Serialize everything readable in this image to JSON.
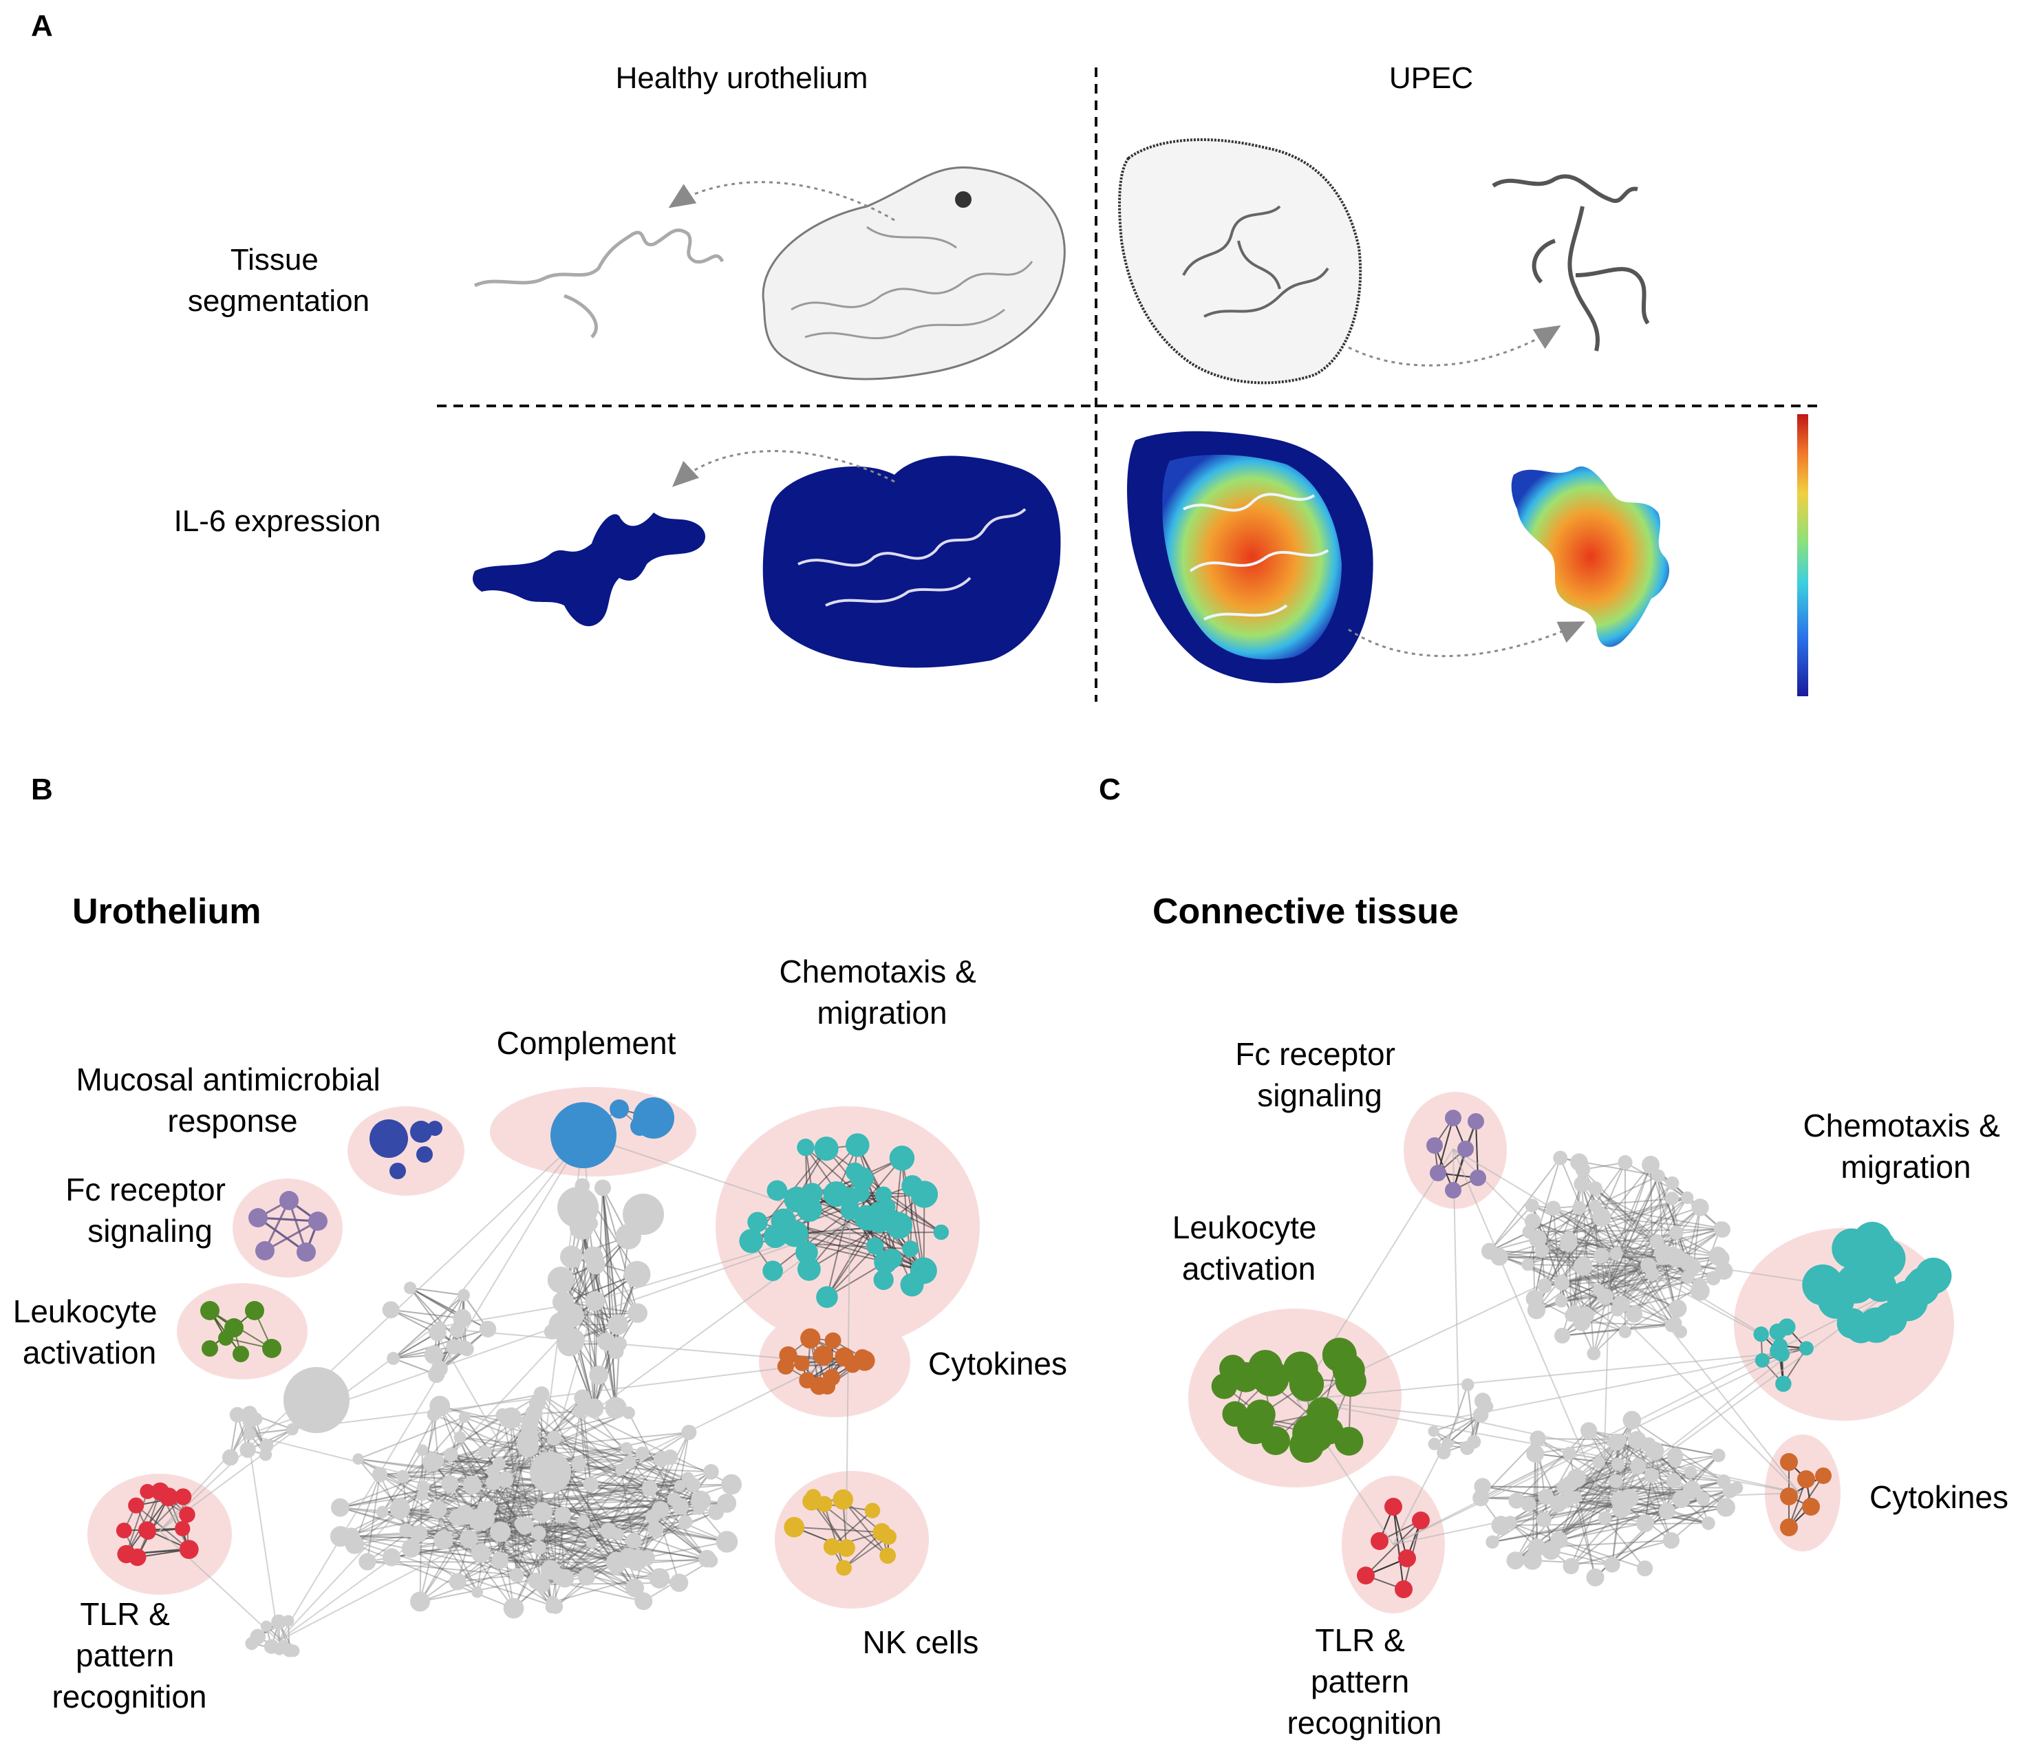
{
  "panel_letters": {
    "a": "A",
    "b": "B",
    "c": "C"
  },
  "panel_a": {
    "col_left": "Healthy urothelium",
    "col_right": "UPEC",
    "row_top": [
      "Tissue",
      "segmentation"
    ],
    "row_bottom": "IL-6 expression"
  },
  "panel_b": {
    "title": "Urothelium",
    "clusters": {
      "mucosal": [
        "Mucosal antimicrobial",
        "response"
      ],
      "complement": [
        "Complement"
      ],
      "chemotaxis": [
        "Chemotaxis  &",
        "migration"
      ],
      "fc": [
        "Fc receptor",
        "signaling"
      ],
      "leukocyte": [
        "Leukocyte",
        "activation"
      ],
      "cytokines": [
        "Cytokines"
      ],
      "tlr": [
        "TLR &",
        "pattern",
        "recognition"
      ],
      "nk": [
        "NK cells"
      ]
    }
  },
  "panel_c": {
    "title": "Connective tissue",
    "clusters": {
      "fc": [
        "Fc receptor",
        "signaling"
      ],
      "chemotaxis": [
        "Chemotaxis  &",
        "migration"
      ],
      "leukocyte": [
        "Leukocyte",
        "activation"
      ],
      "cytokines": [
        "Cytokines"
      ],
      "tlr": [
        "TLR &",
        "pattern",
        "recognition"
      ]
    }
  },
  "colors": {
    "navy": "#0a1787",
    "gray_node": "#cfcfcf",
    "halo": "#f8dcdc",
    "complement": "#3c8fce",
    "mucosal": "#3549a8",
    "fc": "#8e7bb2",
    "leukocyte": "#4e8a22",
    "tlr": "#e03040",
    "chemotaxis": "#3ab9b6",
    "cytokines": "#d0692e",
    "nk": "#e0b52c"
  }
}
